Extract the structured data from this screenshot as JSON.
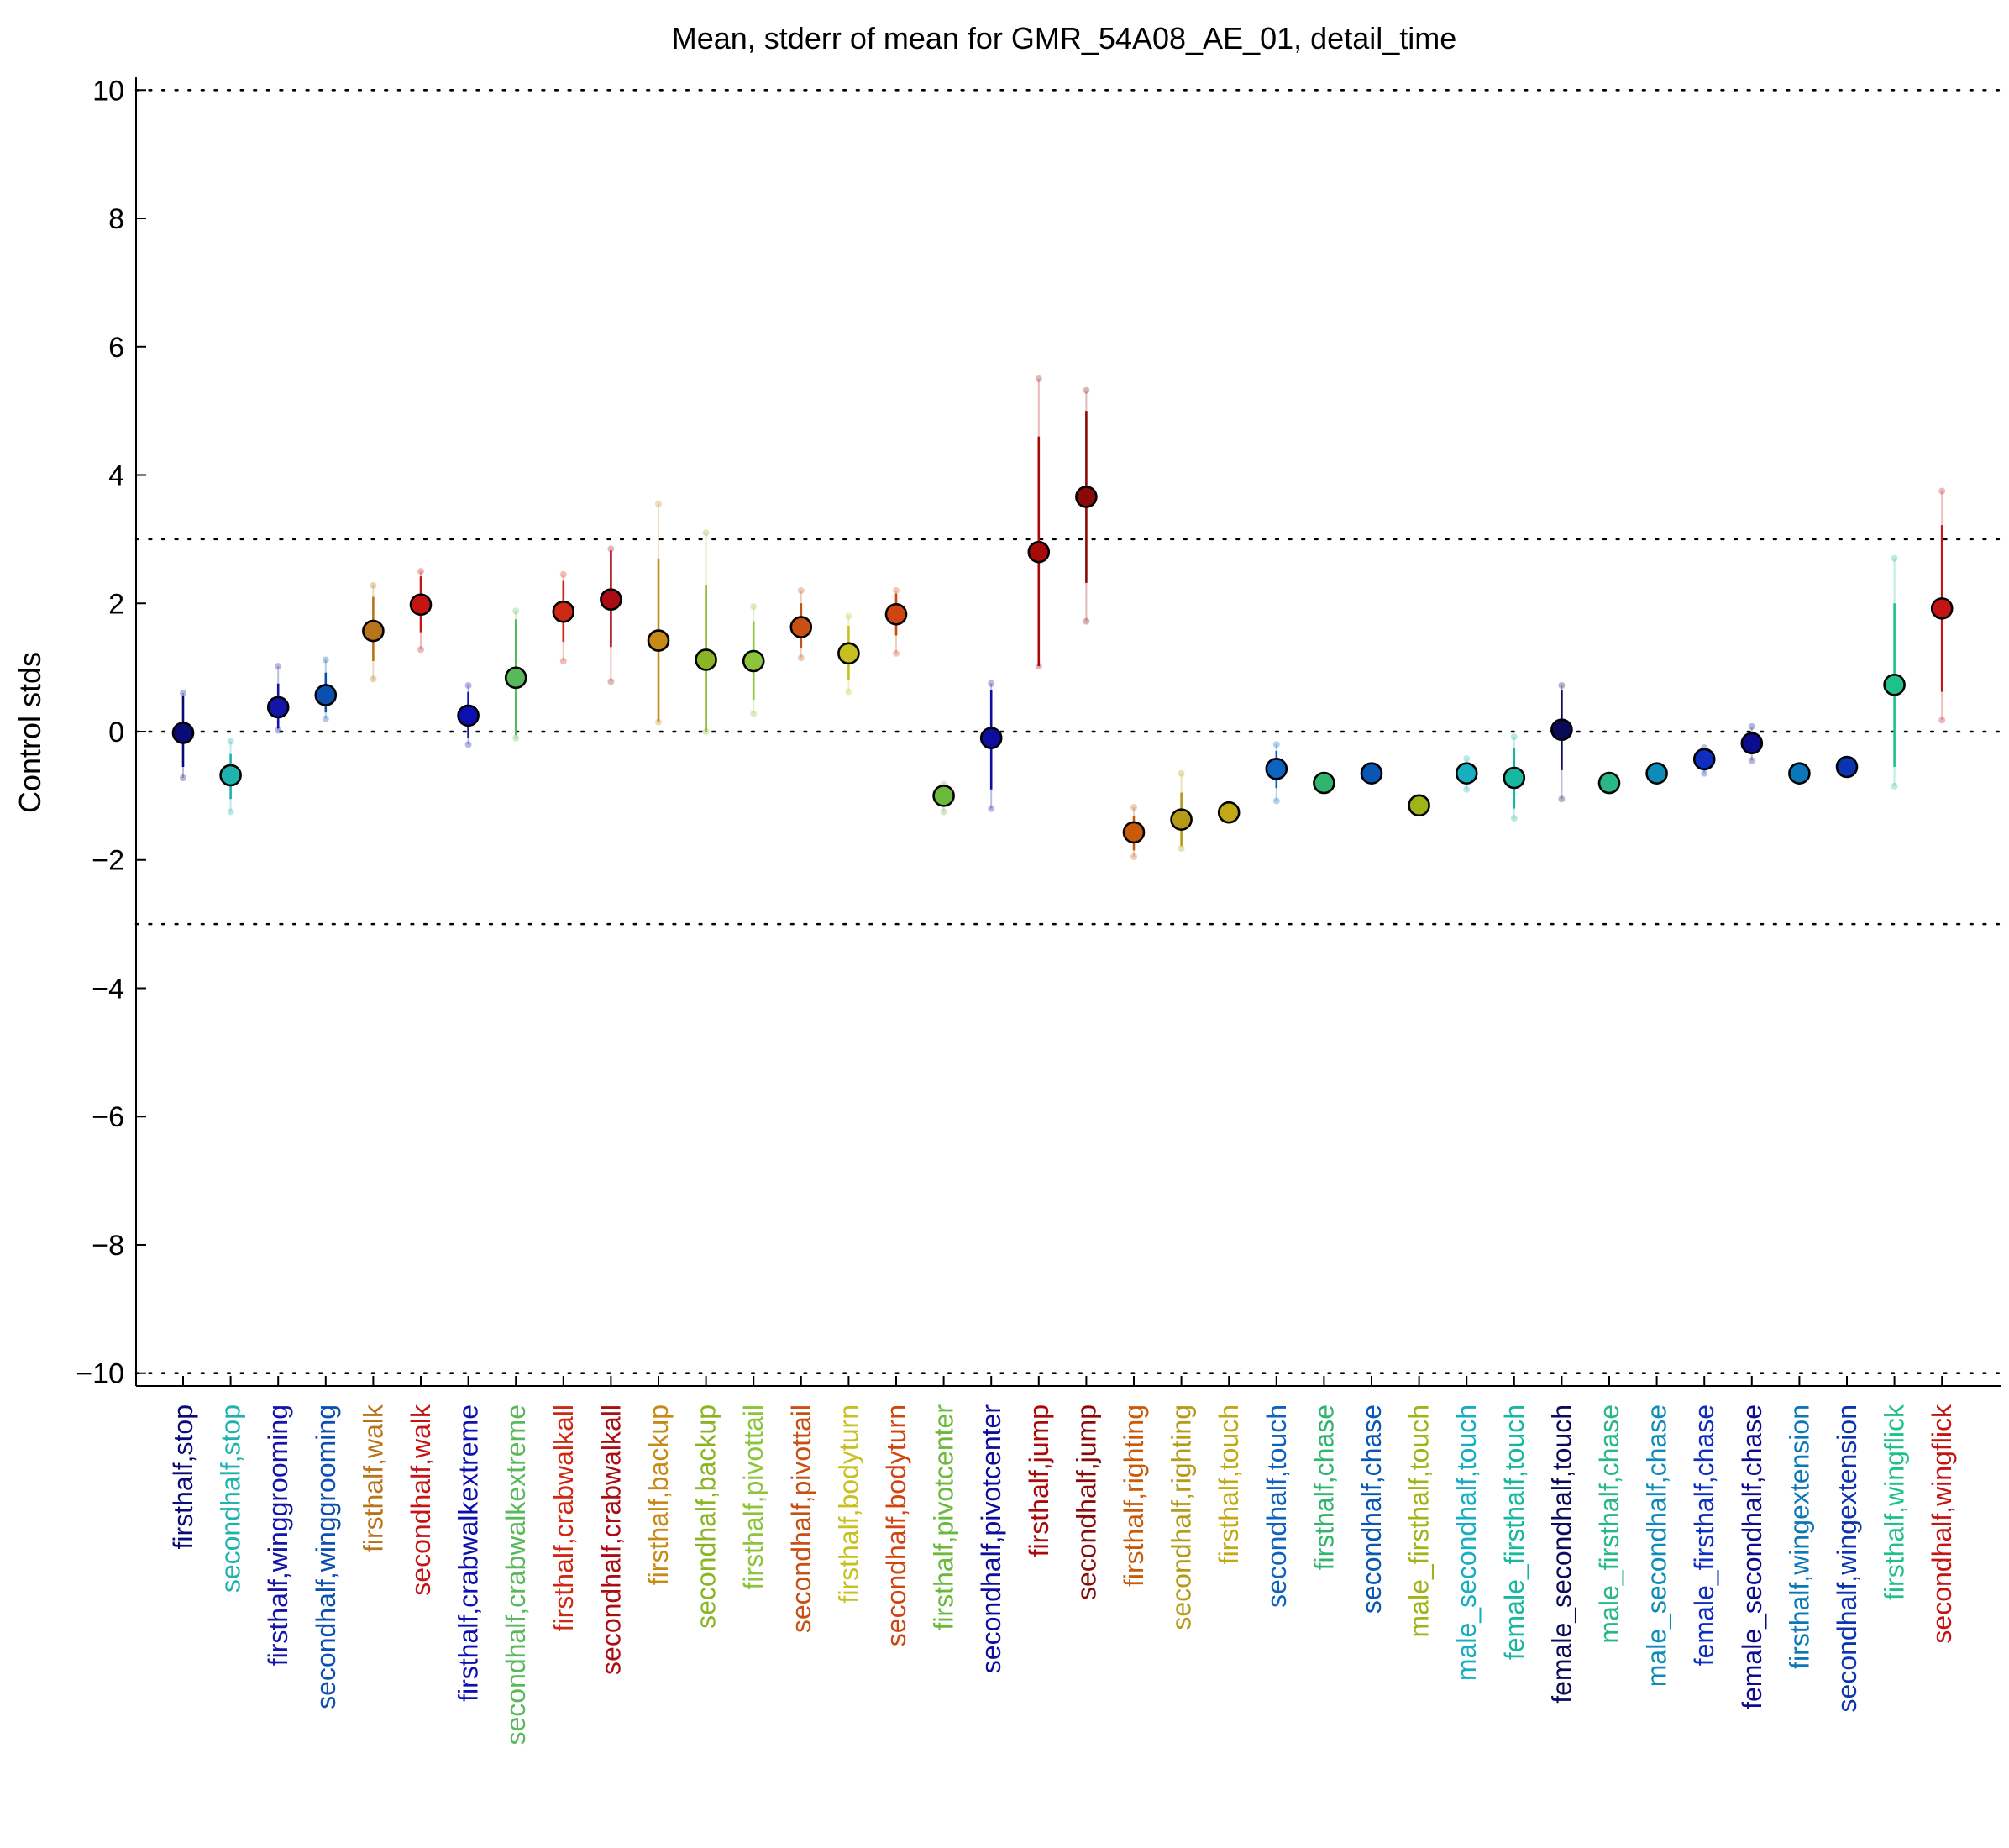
{
  "chart_data": {
    "type": "scatter",
    "title": "Mean, stderr of mean for GMR_54A08_AE_01, detail_time",
    "xlabel": "",
    "ylabel": "Control stds",
    "ylim": [
      -10.2,
      10.2
    ],
    "yticks": [
      10,
      8,
      6,
      4,
      2,
      0,
      -2,
      -4,
      -6,
      -8,
      -10
    ],
    "ytick_labels": [
      "10",
      "8",
      "6",
      "4",
      "2",
      "0",
      "−2",
      "−4",
      "−6",
      "−8",
      "−10"
    ],
    "reference_lines": [
      10,
      3,
      0,
      -3,
      -10
    ],
    "grid": false,
    "points": [
      {
        "label": "firsthalf,stop",
        "color": "#0a0a78",
        "mean": -0.02,
        "err_low": -0.55,
        "err_high": 0.55,
        "data_low": -0.72,
        "data_high": 0.6
      },
      {
        "label": "secondhalf,stop",
        "color": "#1fb3ae",
        "mean": -0.68,
        "err_low": -1.05,
        "err_high": -0.35,
        "data_low": -1.25,
        "data_high": -0.15
      },
      {
        "label": "firsthalf,winggrooming",
        "color": "#1414a8",
        "mean": 0.38,
        "err_low": 0.05,
        "err_high": 0.75,
        "data_low": 0.02,
        "data_high": 1.02
      },
      {
        "label": "secondhalf,winggrooming",
        "color": "#0b4fb0",
        "mean": 0.57,
        "err_low": 0.3,
        "err_high": 0.92,
        "data_low": 0.2,
        "data_high": 1.12
      },
      {
        "label": "firsthalf,walk",
        "color": "#b8741a",
        "mean": 1.57,
        "err_low": 1.1,
        "err_high": 2.1,
        "data_low": 0.82,
        "data_high": 2.28
      },
      {
        "label": "secondhalf,walk",
        "color": "#c41414",
        "mean": 1.98,
        "err_low": 1.55,
        "err_high": 2.42,
        "data_low": 1.28,
        "data_high": 2.5
      },
      {
        "label": "firsthalf,crabwalkextreme",
        "color": "#0c10b0",
        "mean": 0.25,
        "err_low": -0.1,
        "err_high": 0.62,
        "data_low": -0.2,
        "data_high": 0.72
      },
      {
        "label": "secondhalf,crabwalkextreme",
        "color": "#5ab85c",
        "mean": 0.84,
        "err_low": -0.05,
        "err_high": 1.75,
        "data_low": -0.1,
        "data_high": 1.88
      },
      {
        "label": "firsthalf,crabwalkall",
        "color": "#cc2a12",
        "mean": 1.87,
        "err_low": 1.4,
        "err_high": 2.35,
        "data_low": 1.1,
        "data_high": 2.45
      },
      {
        "label": "secondhalf,crabwalkall",
        "color": "#a80e14",
        "mean": 2.06,
        "err_low": 1.32,
        "err_high": 2.82,
        "data_low": 0.78,
        "data_high": 2.85
      },
      {
        "label": "firsthalf,backup",
        "color": "#c88a16",
        "mean": 1.42,
        "err_low": 0.15,
        "err_high": 2.7,
        "data_low": 0.15,
        "data_high": 3.55
      },
      {
        "label": "secondhalf,backup",
        "color": "#8ab424",
        "mean": 1.12,
        "err_low": 0.0,
        "err_high": 2.28,
        "data_low": 0.0,
        "data_high": 3.1
      },
      {
        "label": "firsthalf,pivottail",
        "color": "#8cc43c",
        "mean": 1.1,
        "err_low": 0.5,
        "err_high": 1.72,
        "data_low": 0.28,
        "data_high": 1.95
      },
      {
        "label": "secondhalf,pivottail",
        "color": "#c85012",
        "mean": 1.63,
        "err_low": 1.3,
        "err_high": 2.0,
        "data_low": 1.15,
        "data_high": 2.2
      },
      {
        "label": "firsthalf,bodyturn",
        "color": "#c8c020",
        "mean": 1.22,
        "err_low": 0.8,
        "err_high": 1.65,
        "data_low": 0.62,
        "data_high": 1.8
      },
      {
        "label": "secondhalf,bodyturn",
        "color": "#d04410",
        "mean": 1.83,
        "err_low": 1.5,
        "err_high": 2.15,
        "data_low": 1.22,
        "data_high": 2.2
      },
      {
        "label": "firsthalf,pivotcenter",
        "color": "#6cb83c",
        "mean": -1.0,
        "err_low": -1.15,
        "err_high": -0.88,
        "data_low": -1.25,
        "data_high": -0.82
      },
      {
        "label": "secondhalf,pivotcenter",
        "color": "#0e0e9e",
        "mean": -0.1,
        "err_low": -0.9,
        "err_high": 0.65,
        "data_low": -1.2,
        "data_high": 0.75
      },
      {
        "label": "firsthalf,jump",
        "color": "#a80a0a",
        "mean": 2.8,
        "err_low": 1.02,
        "err_high": 4.6,
        "data_low": 1.02,
        "data_high": 5.5
      },
      {
        "label": "secondhalf,jump",
        "color": "#8a0a0a",
        "mean": 3.66,
        "err_low": 2.32,
        "err_high": 5.0,
        "data_low": 1.72,
        "data_high": 5.32
      },
      {
        "label": "firsthalf,righting",
        "color": "#c85a0c",
        "mean": -1.57,
        "err_low": -1.85,
        "err_high": -1.32,
        "data_low": -1.95,
        "data_high": -1.18
      },
      {
        "label": "secondhalf,righting",
        "color": "#b49a18",
        "mean": -1.37,
        "err_low": -1.78,
        "err_high": -0.95,
        "data_low": -1.82,
        "data_high": -0.65
      },
      {
        "label": "firsthalf,touch",
        "color": "#c0a816",
        "mean": -1.26,
        "err_low": -1.36,
        "err_high": -1.16,
        "data_low": -1.36,
        "data_high": -1.16
      },
      {
        "label": "secondhalf,touch",
        "color": "#0e62c0",
        "mean": -0.58,
        "err_low": -0.88,
        "err_high": -0.3,
        "data_low": -1.08,
        "data_high": -0.2
      },
      {
        "label": "firsthalf,chase",
        "color": "#30b46e",
        "mean": -0.8,
        "err_low": -0.86,
        "err_high": -0.74,
        "data_low": -0.86,
        "data_high": -0.74
      },
      {
        "label": "secondhalf,chase",
        "color": "#0a56b4",
        "mean": -0.65,
        "err_low": -0.72,
        "err_high": -0.58,
        "data_low": -0.72,
        "data_high": -0.58
      },
      {
        "label": "male_firsthalf,touch",
        "color": "#a0b418",
        "mean": -1.15,
        "err_low": -1.22,
        "err_high": -1.08,
        "data_low": -1.22,
        "data_high": -1.08
      },
      {
        "label": "male_secondhalf,touch",
        "color": "#16aec0",
        "mean": -0.65,
        "err_low": -0.78,
        "err_high": -0.52,
        "data_low": -0.9,
        "data_high": -0.42
      },
      {
        "label": "female_firsthalf,touch",
        "color": "#18b8a0",
        "mean": -0.72,
        "err_low": -1.2,
        "err_high": -0.25,
        "data_low": -1.35,
        "data_high": -0.08
      },
      {
        "label": "female_secondhalf,touch",
        "color": "#0a0a5a",
        "mean": 0.03,
        "err_low": -0.6,
        "err_high": 0.65,
        "data_low": -1.05,
        "data_high": 0.72
      },
      {
        "label": "male_firsthalf,chase",
        "color": "#28b888",
        "mean": -0.8,
        "err_low": -0.86,
        "err_high": -0.74,
        "data_low": -0.86,
        "data_high": -0.74
      },
      {
        "label": "male_secondhalf,chase",
        "color": "#0e8cb8",
        "mean": -0.65,
        "err_low": -0.72,
        "err_high": -0.58,
        "data_low": -0.72,
        "data_high": -0.58
      },
      {
        "label": "female_firsthalf,chase",
        "color": "#0e2ec0",
        "mean": -0.43,
        "err_low": -0.55,
        "err_high": -0.3,
        "data_low": -0.65,
        "data_high": -0.25
      },
      {
        "label": "female_secondhalf,chase",
        "color": "#0c0c90",
        "mean": -0.18,
        "err_low": -0.35,
        "err_high": -0.05,
        "data_low": -0.45,
        "data_high": 0.08
      },
      {
        "label": "firsthalf,wingextension",
        "color": "#0a78b8",
        "mean": -0.65,
        "err_low": -0.72,
        "err_high": -0.58,
        "data_low": -0.72,
        "data_high": -0.58
      },
      {
        "label": "secondhalf,wingextension",
        "color": "#0c34b0",
        "mean": -0.55,
        "err_low": -0.62,
        "err_high": -0.48,
        "data_low": -0.62,
        "data_high": -0.48
      },
      {
        "label": "firsthalf,wingflick",
        "color": "#1ec08c",
        "mean": 0.73,
        "err_low": -0.55,
        "err_high": 2.0,
        "data_low": -0.85,
        "data_high": 2.7
      },
      {
        "label": "secondhalf,wingflick",
        "color": "#c41414",
        "mean": 1.92,
        "err_low": 0.62,
        "err_high": 3.22,
        "data_low": 0.18,
        "data_high": 3.75
      }
    ]
  }
}
